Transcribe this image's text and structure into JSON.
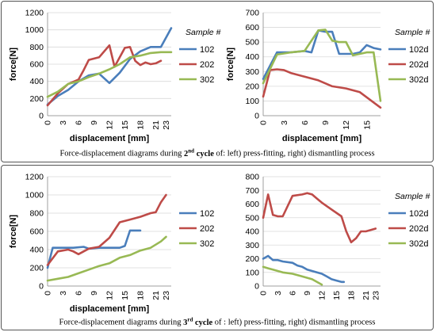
{
  "rows": [
    {
      "caption": {
        "before": "Force-displacement diagrams during ",
        "ordinal": "2",
        "sup": "nd",
        "cycle": " cycle",
        "after": " of: left) press-fitting, right) dismantling process"
      },
      "charts": [
        {
          "type": "line",
          "xlabel": "displacement [mm]",
          "ylabel": "force[N]",
          "legend_title": "Sample #",
          "legend_position": "right",
          "ylim": [
            0,
            1200
          ],
          "yticks": [
            0,
            200,
            400,
            600,
            800,
            1000,
            1200
          ],
          "xlim": [
            0,
            24
          ],
          "xticks": [
            0,
            3,
            6,
            9,
            12,
            15,
            18,
            21,
            23
          ],
          "xtick_labels": [
            "0",
            "3",
            "6",
            "9",
            "12",
            "15",
            "18",
            "21",
            "23"
          ],
          "grid": true,
          "series": [
            {
              "name": "102",
              "color": "#4a7ebb",
              "x": [
                0,
                2,
                4,
                6,
                8,
                10,
                12,
                14,
                16,
                18,
                20,
                22,
                24
              ],
              "y": [
                130,
                230,
                300,
                400,
                470,
                490,
                380,
                500,
                660,
                750,
                800,
                800,
                1020
              ]
            },
            {
              "name": "202",
              "color": "#be4b48",
              "x": [
                0,
                2,
                4,
                6,
                7,
                8,
                10,
                12,
                13,
                15,
                16,
                17,
                18,
                19,
                20,
                21,
                22
              ],
              "y": [
                120,
                260,
                370,
                420,
                530,
                650,
                680,
                820,
                570,
                790,
                800,
                640,
                590,
                620,
                600,
                610,
                640
              ]
            },
            {
              "name": "302",
              "color": "#98b954",
              "x": [
                0,
                2,
                4,
                6,
                8,
                10,
                12,
                14,
                16,
                18,
                20,
                22,
                24
              ],
              "y": [
                220,
                280,
                370,
                400,
                450,
                490,
                540,
                600,
                680,
                700,
                730,
                740,
                740
              ]
            }
          ]
        },
        {
          "type": "line",
          "xlabel": "displacement [mm]",
          "ylabel": "force[N]",
          "legend_title": "Sample #",
          "legend_position": "right",
          "ylim": [
            0,
            700
          ],
          "yticks": [
            0,
            100,
            200,
            300,
            400,
            500,
            600,
            700
          ],
          "xlim": [
            0,
            17
          ],
          "xticks": [
            0,
            3,
            6,
            9,
            12,
            15
          ],
          "xtick_labels": [
            "0",
            "3",
            "6",
            "9",
            "12",
            "15"
          ],
          "grid": true,
          "series": [
            {
              "name": "102d",
              "color": "#4a7ebb",
              "x": [
                0,
                2,
                4,
                6,
                7,
                8,
                9,
                10,
                11,
                12,
                13,
                14,
                15,
                16,
                17
              ],
              "y": [
                250,
                430,
                430,
                440,
                430,
                580,
                570,
                570,
                420,
                420,
                420,
                430,
                480,
                460,
                450
              ]
            },
            {
              "name": "202d",
              "color": "#be4b48",
              "x": [
                0,
                1,
                2,
                3,
                4,
                6,
                8,
                10,
                12,
                14,
                16,
                17
              ],
              "y": [
                130,
                310,
                315,
                310,
                290,
                265,
                240,
                200,
                185,
                160,
                90,
                55
              ]
            },
            {
              "name": "302d",
              "color": "#98b954",
              "x": [
                0,
                2,
                4,
                6,
                8,
                9,
                10,
                11,
                12,
                13,
                14,
                15,
                16,
                17
              ],
              "y": [
                220,
                415,
                430,
                440,
                580,
                585,
                510,
                500,
                500,
                410,
                420,
                430,
                430,
                100
              ]
            }
          ]
        }
      ]
    },
    {
      "caption": {
        "before": "Force-displacement diagrams during ",
        "ordinal": "3",
        "sup": "rd",
        "cycle": " cycle",
        "after": " of : left) press-fitting, right) dismantling process"
      },
      "charts": [
        {
          "type": "line",
          "xlabel": "displacement [mm]",
          "ylabel": "force[N]",
          "legend_title": "",
          "legend_position": "right",
          "ylim": [
            0,
            1200
          ],
          "yticks": [
            0,
            200,
            400,
            600,
            800,
            1000,
            1200
          ],
          "xlim": [
            0,
            24
          ],
          "xticks": [
            0,
            3,
            6,
            9,
            12,
            15,
            18,
            21,
            23
          ],
          "xtick_labels": [
            "0",
            "3",
            "6",
            "9",
            "12",
            "15",
            "18",
            "21",
            "23"
          ],
          "grid": true,
          "series": [
            {
              "name": "102",
              "color": "#4a7ebb",
              "x": [
                0,
                1,
                3,
                5,
                7,
                8,
                10,
                12,
                14,
                15,
                16,
                17,
                18
              ],
              "y": [
                200,
                420,
                420,
                420,
                430,
                410,
                420,
                420,
                420,
                440,
                610,
                610,
                610
              ]
            },
            {
              "name": "202",
              "color": "#be4b48",
              "x": [
                0,
                2,
                4,
                5,
                6,
                8,
                10,
                12,
                14,
                16,
                18,
                20,
                21,
                22,
                23
              ],
              "y": [
                230,
                380,
                400,
                380,
                350,
                410,
                430,
                530,
                700,
                730,
                760,
                800,
                810,
                920,
                1000
              ]
            },
            {
              "name": "302",
              "color": "#98b954",
              "x": [
                0,
                2,
                4,
                6,
                8,
                10,
                12,
                14,
                16,
                18,
                20,
                22,
                23
              ],
              "y": [
                60,
                80,
                100,
                140,
                180,
                220,
                250,
                310,
                340,
                390,
                420,
                490,
                540
              ]
            }
          ]
        },
        {
          "type": "line",
          "xlabel": "",
          "ylabel": "",
          "legend_title": "Sample #",
          "legend_position": "right",
          "ylim": [
            0,
            800
          ],
          "yticks": [
            0,
            100,
            200,
            300,
            400,
            500,
            600,
            700,
            800
          ],
          "xlim": [
            0,
            24
          ],
          "xticks": [
            0,
            3,
            6,
            9,
            12,
            15,
            18,
            21,
            23
          ],
          "xtick_labels": [
            "0",
            "3",
            "6",
            "9",
            "12",
            "15",
            "18",
            "21",
            "23"
          ],
          "grid": true,
          "series": [
            {
              "name": "102d",
              "color": "#4a7ebb",
              "x": [
                0,
                1,
                2,
                3,
                4,
                6,
                7,
                8,
                9,
                10,
                11,
                12,
                13,
                14,
                15,
                16,
                16.5
              ],
              "y": [
                200,
                220,
                190,
                190,
                180,
                170,
                150,
                140,
                120,
                110,
                100,
                90,
                70,
                50,
                40,
                30,
                30
              ]
            },
            {
              "name": "202d",
              "color": "#be4b48",
              "x": [
                0,
                1,
                2,
                3,
                4,
                6,
                8,
                9,
                10,
                11,
                12,
                14,
                16,
                17,
                18,
                19,
                20,
                21,
                22,
                23
              ],
              "y": [
                500,
                670,
                520,
                510,
                510,
                660,
                670,
                680,
                670,
                640,
                610,
                560,
                510,
                400,
                320,
                350,
                400,
                400,
                410,
                420
              ]
            },
            {
              "name": "302d",
              "color": "#98b954",
              "x": [
                0,
                1,
                2,
                3,
                4,
                6,
                8,
                10,
                12
              ],
              "y": [
                140,
                130,
                120,
                110,
                100,
                90,
                70,
                50,
                10
              ]
            }
          ]
        }
      ]
    }
  ]
}
